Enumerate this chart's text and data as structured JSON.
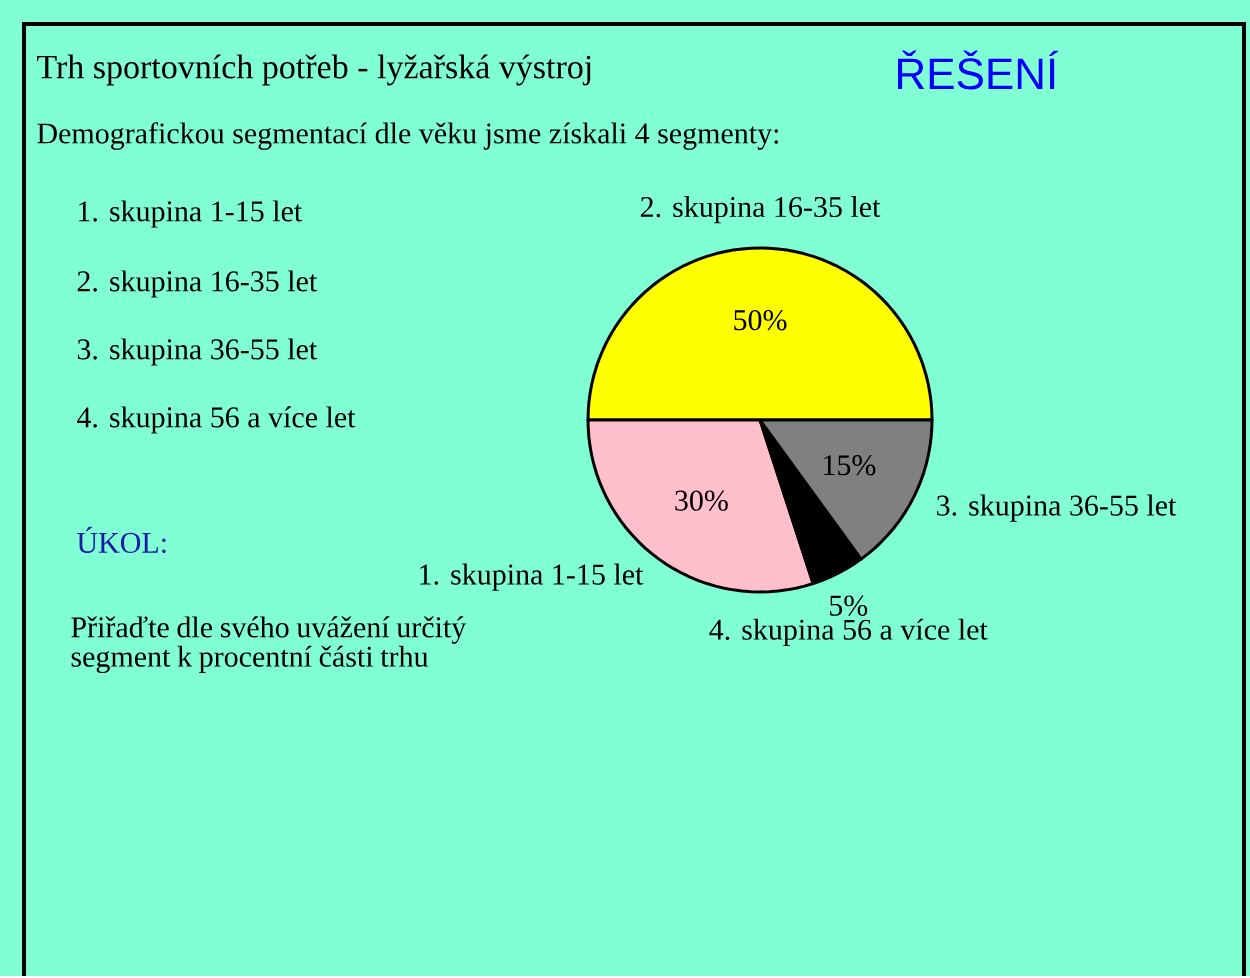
{
  "chart_data": {
    "type": "pie",
    "title": "Trh sportovních potřeb - lyžařská výstroj",
    "subtitle": "Demografickou segmentací dle věku jsme získali 4 segmenty:",
    "categories": [
      "2. skupina 16-35 let",
      "1. skupina 1-15 let",
      "4. skupina 56 a více let",
      "3. skupina 36-55 let"
    ],
    "values": [
      50,
      30,
      5,
      15
    ],
    "colors": [
      "#ffff00",
      "#ffc0cb",
      "#000000",
      "#808080"
    ],
    "value_labels": [
      "50%",
      "30%",
      "5%",
      "15%"
    ],
    "annotations": [
      "ŘEŠENÍ",
      "1. skupina 1-15 let",
      "2. skupina 16-35 let",
      "3. skupina 36-55 let",
      "4. skupina 56 a více let",
      "ÚKOL:",
      "Přiřaďte dle svého uvážení určitý segment k procentní části trhu"
    ]
  }
}
